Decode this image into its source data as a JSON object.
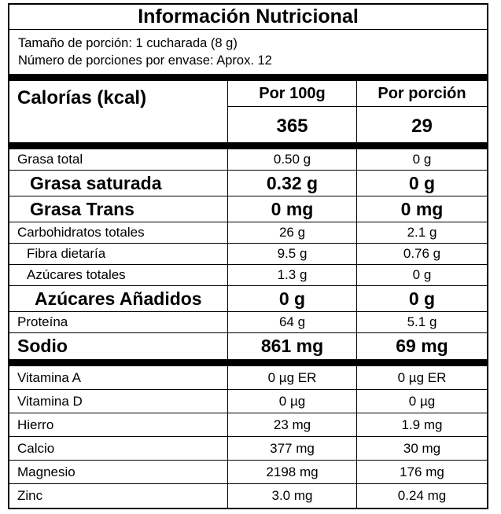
{
  "title": "Información Nutricional",
  "portion_size": "Tamaño de porción: 1 cucharada (8 g)",
  "portions_per_container": "Número de porciones por envase: Aprox. 12",
  "calories": {
    "label": "Calorías (kcal)",
    "per_100g_header": "Por 100g",
    "per_portion_header": "Por porción",
    "per_100g": "365",
    "per_portion": "29"
  },
  "nutrients": [
    {
      "name": "Grasa total",
      "per100": "0.50 g",
      "portion": "0 g"
    },
    {
      "name": "Grasa saturada",
      "per100": "0.32 g",
      "portion": "0 g"
    },
    {
      "name": "Grasa Trans",
      "per100": "0 mg",
      "portion": "0 mg"
    },
    {
      "name": "Carbohidratos totales",
      "per100": "26 g",
      "portion": "2.1 g"
    },
    {
      "name": "Fibra dietaría",
      "per100": "9.5 g",
      "portion": "0.76 g"
    },
    {
      "name": "Azúcares totales",
      "per100": "1.3 g",
      "portion": "0 g"
    },
    {
      "name": "Azúcares Añadidos",
      "per100": "0 g",
      "portion": "0 g"
    },
    {
      "name": "Proteína",
      "per100": "64 g",
      "portion": "5.1 g"
    },
    {
      "name": "Sodio",
      "per100": "861 mg",
      "portion": "69 mg"
    }
  ],
  "micronutrients": [
    {
      "name": "Vitamina A",
      "per100": "0 µg ER",
      "portion": "0 µg ER"
    },
    {
      "name": "Vitamina D",
      "per100": "0 µg",
      "portion": "0 µg"
    },
    {
      "name": "Hierro",
      "per100": "23 mg",
      "portion": "1.9 mg"
    },
    {
      "name": "Calcio",
      "per100": "377 mg",
      "portion": "30 mg"
    },
    {
      "name": "Magnesio",
      "per100": "2198 mg",
      "portion": "176 mg"
    },
    {
      "name": "Zinc",
      "per100": "3.0 mg",
      "portion": "0.24 mg"
    }
  ]
}
